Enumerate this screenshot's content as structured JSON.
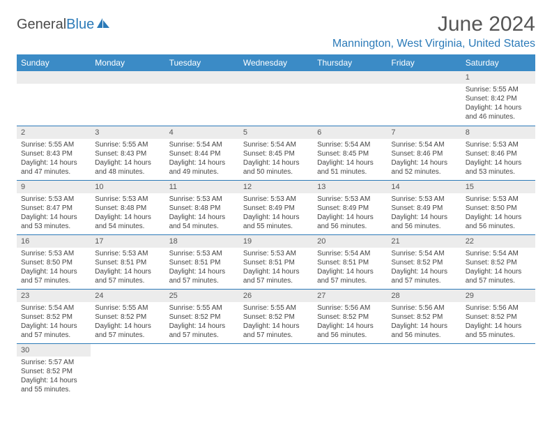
{
  "logo": {
    "part1": "General",
    "part2": "Blue"
  },
  "title": "June 2024",
  "location": "Mannington, West Virginia, United States",
  "colors": {
    "header_bg": "#3b8bc6",
    "accent": "#2b7ab8",
    "daynum_bg": "#ececec",
    "text": "#444444"
  },
  "day_headers": [
    "Sunday",
    "Monday",
    "Tuesday",
    "Wednesday",
    "Thursday",
    "Friday",
    "Saturday"
  ],
  "weeks": [
    [
      null,
      null,
      null,
      null,
      null,
      null,
      {
        "n": "1",
        "sr": "Sunrise: 5:55 AM",
        "ss": "Sunset: 8:42 PM",
        "d1": "Daylight: 14 hours",
        "d2": "and 46 minutes."
      }
    ],
    [
      {
        "n": "2",
        "sr": "Sunrise: 5:55 AM",
        "ss": "Sunset: 8:43 PM",
        "d1": "Daylight: 14 hours",
        "d2": "and 47 minutes."
      },
      {
        "n": "3",
        "sr": "Sunrise: 5:55 AM",
        "ss": "Sunset: 8:43 PM",
        "d1": "Daylight: 14 hours",
        "d2": "and 48 minutes."
      },
      {
        "n": "4",
        "sr": "Sunrise: 5:54 AM",
        "ss": "Sunset: 8:44 PM",
        "d1": "Daylight: 14 hours",
        "d2": "and 49 minutes."
      },
      {
        "n": "5",
        "sr": "Sunrise: 5:54 AM",
        "ss": "Sunset: 8:45 PM",
        "d1": "Daylight: 14 hours",
        "d2": "and 50 minutes."
      },
      {
        "n": "6",
        "sr": "Sunrise: 5:54 AM",
        "ss": "Sunset: 8:45 PM",
        "d1": "Daylight: 14 hours",
        "d2": "and 51 minutes."
      },
      {
        "n": "7",
        "sr": "Sunrise: 5:54 AM",
        "ss": "Sunset: 8:46 PM",
        "d1": "Daylight: 14 hours",
        "d2": "and 52 minutes."
      },
      {
        "n": "8",
        "sr": "Sunrise: 5:53 AM",
        "ss": "Sunset: 8:46 PM",
        "d1": "Daylight: 14 hours",
        "d2": "and 53 minutes."
      }
    ],
    [
      {
        "n": "9",
        "sr": "Sunrise: 5:53 AM",
        "ss": "Sunset: 8:47 PM",
        "d1": "Daylight: 14 hours",
        "d2": "and 53 minutes."
      },
      {
        "n": "10",
        "sr": "Sunrise: 5:53 AM",
        "ss": "Sunset: 8:48 PM",
        "d1": "Daylight: 14 hours",
        "d2": "and 54 minutes."
      },
      {
        "n": "11",
        "sr": "Sunrise: 5:53 AM",
        "ss": "Sunset: 8:48 PM",
        "d1": "Daylight: 14 hours",
        "d2": "and 54 minutes."
      },
      {
        "n": "12",
        "sr": "Sunrise: 5:53 AM",
        "ss": "Sunset: 8:49 PM",
        "d1": "Daylight: 14 hours",
        "d2": "and 55 minutes."
      },
      {
        "n": "13",
        "sr": "Sunrise: 5:53 AM",
        "ss": "Sunset: 8:49 PM",
        "d1": "Daylight: 14 hours",
        "d2": "and 56 minutes."
      },
      {
        "n": "14",
        "sr": "Sunrise: 5:53 AM",
        "ss": "Sunset: 8:49 PM",
        "d1": "Daylight: 14 hours",
        "d2": "and 56 minutes."
      },
      {
        "n": "15",
        "sr": "Sunrise: 5:53 AM",
        "ss": "Sunset: 8:50 PM",
        "d1": "Daylight: 14 hours",
        "d2": "and 56 minutes."
      }
    ],
    [
      {
        "n": "16",
        "sr": "Sunrise: 5:53 AM",
        "ss": "Sunset: 8:50 PM",
        "d1": "Daylight: 14 hours",
        "d2": "and 57 minutes."
      },
      {
        "n": "17",
        "sr": "Sunrise: 5:53 AM",
        "ss": "Sunset: 8:51 PM",
        "d1": "Daylight: 14 hours",
        "d2": "and 57 minutes."
      },
      {
        "n": "18",
        "sr": "Sunrise: 5:53 AM",
        "ss": "Sunset: 8:51 PM",
        "d1": "Daylight: 14 hours",
        "d2": "and 57 minutes."
      },
      {
        "n": "19",
        "sr": "Sunrise: 5:53 AM",
        "ss": "Sunset: 8:51 PM",
        "d1": "Daylight: 14 hours",
        "d2": "and 57 minutes."
      },
      {
        "n": "20",
        "sr": "Sunrise: 5:54 AM",
        "ss": "Sunset: 8:51 PM",
        "d1": "Daylight: 14 hours",
        "d2": "and 57 minutes."
      },
      {
        "n": "21",
        "sr": "Sunrise: 5:54 AM",
        "ss": "Sunset: 8:52 PM",
        "d1": "Daylight: 14 hours",
        "d2": "and 57 minutes."
      },
      {
        "n": "22",
        "sr": "Sunrise: 5:54 AM",
        "ss": "Sunset: 8:52 PM",
        "d1": "Daylight: 14 hours",
        "d2": "and 57 minutes."
      }
    ],
    [
      {
        "n": "23",
        "sr": "Sunrise: 5:54 AM",
        "ss": "Sunset: 8:52 PM",
        "d1": "Daylight: 14 hours",
        "d2": "and 57 minutes."
      },
      {
        "n": "24",
        "sr": "Sunrise: 5:55 AM",
        "ss": "Sunset: 8:52 PM",
        "d1": "Daylight: 14 hours",
        "d2": "and 57 minutes."
      },
      {
        "n": "25",
        "sr": "Sunrise: 5:55 AM",
        "ss": "Sunset: 8:52 PM",
        "d1": "Daylight: 14 hours",
        "d2": "and 57 minutes."
      },
      {
        "n": "26",
        "sr": "Sunrise: 5:55 AM",
        "ss": "Sunset: 8:52 PM",
        "d1": "Daylight: 14 hours",
        "d2": "and 57 minutes."
      },
      {
        "n": "27",
        "sr": "Sunrise: 5:56 AM",
        "ss": "Sunset: 8:52 PM",
        "d1": "Daylight: 14 hours",
        "d2": "and 56 minutes."
      },
      {
        "n": "28",
        "sr": "Sunrise: 5:56 AM",
        "ss": "Sunset: 8:52 PM",
        "d1": "Daylight: 14 hours",
        "d2": "and 56 minutes."
      },
      {
        "n": "29",
        "sr": "Sunrise: 5:56 AM",
        "ss": "Sunset: 8:52 PM",
        "d1": "Daylight: 14 hours",
        "d2": "and 55 minutes."
      }
    ],
    [
      {
        "n": "30",
        "sr": "Sunrise: 5:57 AM",
        "ss": "Sunset: 8:52 PM",
        "d1": "Daylight: 14 hours",
        "d2": "and 55 minutes."
      },
      null,
      null,
      null,
      null,
      null,
      null
    ]
  ]
}
